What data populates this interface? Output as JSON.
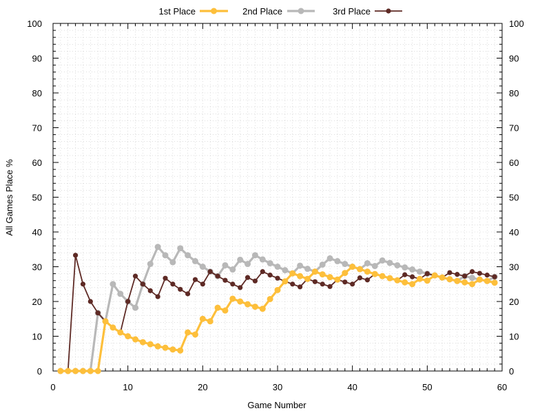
{
  "chart_data": {
    "type": "line",
    "xlabel": "Game Number",
    "ylabel": "All Games Place %",
    "xlim": [
      0,
      60
    ],
    "ylim": [
      0,
      100
    ],
    "x_ticks": [
      0,
      10,
      20,
      30,
      40,
      50,
      60
    ],
    "y_ticks": [
      0,
      10,
      20,
      30,
      40,
      50,
      60,
      70,
      80,
      90,
      100
    ],
    "grid": true,
    "legend_position": "top-center",
    "x": [
      1,
      2,
      3,
      4,
      5,
      6,
      7,
      8,
      9,
      10,
      11,
      12,
      13,
      14,
      15,
      16,
      17,
      18,
      19,
      20,
      21,
      22,
      23,
      24,
      25,
      26,
      27,
      28,
      29,
      30,
      31,
      32,
      33,
      34,
      35,
      36,
      37,
      38,
      39,
      40,
      41,
      42,
      43,
      44,
      45,
      46,
      47,
      48,
      49,
      50,
      51,
      52,
      53,
      54,
      55,
      56,
      57,
      58,
      59
    ],
    "series": [
      {
        "name": "1st Place",
        "color": "#fdbf3b",
        "values": [
          0,
          0,
          0,
          0,
          0,
          0,
          14.3,
          12.5,
          11.1,
          10,
          9.1,
          8.3,
          7.7,
          7.1,
          6.7,
          6.2,
          5.9,
          11.1,
          10.5,
          15,
          14.3,
          18.2,
          17.4,
          20.8,
          20,
          19.2,
          18.5,
          17.9,
          20.7,
          23.3,
          25.8,
          28.1,
          27.3,
          26.5,
          28.6,
          27.8,
          27,
          26.3,
          28.2,
          30,
          29.3,
          28.6,
          27.9,
          27.3,
          26.7,
          26.1,
          25.5,
          25,
          26.5,
          26,
          27.5,
          26.9,
          26.4,
          25.9,
          25.5,
          25,
          26.3,
          25.9,
          25.4
        ]
      },
      {
        "name": "2nd Place",
        "color": "#b8b8b8",
        "values": [
          0,
          0,
          0,
          0,
          0,
          16.7,
          14.3,
          25,
          22.2,
          20,
          18.2,
          25,
          30.8,
          35.7,
          33.3,
          31.3,
          35.3,
          33.3,
          31.6,
          30,
          28.6,
          27.3,
          30.4,
          29.2,
          32,
          30.8,
          33.3,
          32.1,
          31,
          30,
          29,
          28.1,
          30.3,
          29.4,
          28.6,
          30.6,
          32.4,
          31.6,
          30.8,
          30,
          29.3,
          31,
          30.2,
          31.8,
          31.1,
          30.4,
          29.8,
          29.2,
          28.6,
          28,
          27.5,
          26.9,
          26.4,
          25.9,
          27.3,
          26.8,
          26.3,
          25.9,
          27.1
        ]
      },
      {
        "name": "3rd Place",
        "color": "#5e2a25",
        "values": [
          0,
          0,
          33.3,
          25,
          20,
          16.7,
          14.3,
          12.5,
          11.1,
          20,
          27.3,
          25,
          23.1,
          21.4,
          26.7,
          25,
          23.5,
          22.2,
          26.3,
          25,
          28.6,
          27.3,
          26.1,
          25,
          24,
          26.9,
          25.9,
          28.6,
          27.6,
          26.7,
          25.8,
          25,
          24.2,
          26.5,
          25.7,
          25,
          24.3,
          26.3,
          25.6,
          25,
          26.8,
          26.2,
          27.9,
          27.3,
          26.7,
          26.1,
          27.7,
          27.1,
          26.5,
          28,
          27.5,
          26.9,
          28.3,
          27.8,
          27.3,
          28.6,
          28.1,
          27.6,
          27.1
        ]
      }
    ]
  }
}
